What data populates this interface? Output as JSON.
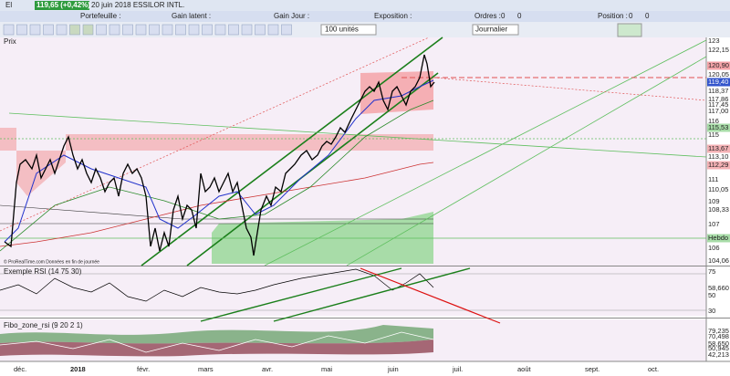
{
  "title_bar": {
    "symbol": "El",
    "quote": "119,65 (+0,42%)",
    "description": "20 juin 2018 ESSILOR INTL."
  },
  "account_bar": {
    "portfolio": "Portefeuille :",
    "latent_gain": "Gain latent :",
    "day_gain": "Gain Jour :",
    "exposure": "Exposition :",
    "orders": "Ordres :",
    "orders_buy": "0",
    "orders_sell": "0",
    "position": "Position :",
    "position_long": "0",
    "position_short": "0"
  },
  "toolbar": {
    "quantity": "100 unités",
    "period": "Journalier"
  },
  "price_pane": {
    "label": "Prix",
    "source": "© ProRealTime.com Données en fin de journée",
    "axis_labels": [
      "123",
      "122,15",
      "120,90",
      "120,05",
      "119,40",
      "118,37",
      "117,86",
      "117,45",
      "117,00",
      "116",
      "115,53",
      "115",
      "113,67",
      "113,10",
      "112,29",
      "111",
      "110,05",
      "109",
      "108,33",
      "107",
      "Hebdo",
      "106",
      "104,06"
    ]
  },
  "rsi_pane": {
    "label": "Exemple RSI (14 75 30)",
    "axis_labels": [
      "75",
      "58,660",
      "50",
      "30"
    ]
  },
  "fibo_pane": {
    "label": "Fibo_zone_rsi (9 20 2 1)",
    "axis_labels": [
      "79,235",
      "70,498",
      "58,650",
      "50,945",
      "42,213"
    ]
  },
  "time_axis": [
    "déc.",
    "2018",
    "févr.",
    "mars",
    "avr.",
    "mai",
    "juin",
    "juil.",
    "août",
    "sept.",
    "oct."
  ]
}
